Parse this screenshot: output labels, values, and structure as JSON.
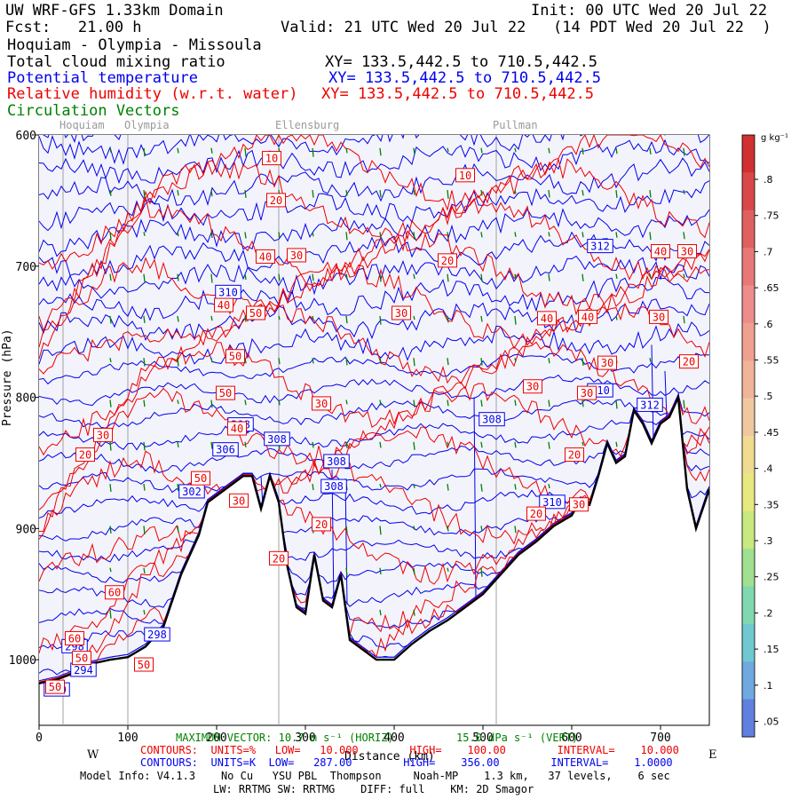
{
  "header": {
    "domain": "UW WRF-GFS 1.33km Domain",
    "init": "Init: 00 UTC Wed 20 Jul 22",
    "fcst": "Fcst:   21.00 h",
    "valid": "Valid: 21 UTC Wed 20 Jul 22   (14 PDT Wed 20 Jul 22  )",
    "route": "Hoquiam - Olympia - Missoula",
    "field1": "Total cloud mixing ratio",
    "field1_xy": "XY= 133.5,442.5 to 710.5,442.5",
    "field2": "Potential temperature",
    "field2_xy": "XY= 133.5,442.5 to 710.5,442.5",
    "field3": "Relative humidity (w.r.t. water)",
    "field3_xy": "XY= 133.5,442.5 to 710.5,442.5",
    "field4": "Circulation Vectors"
  },
  "colors": {
    "temperature": "#0000ee",
    "humidity": "#ee0000",
    "vectors": "#008000",
    "terrain": "#000000",
    "fill": "#f3f3fb"
  },
  "chart_data": {
    "type": "line",
    "xlabel": "Distance (km)",
    "ylabel": "Pressure (hPa)",
    "xlim": [
      0,
      755
    ],
    "ylim": [
      1050,
      600
    ],
    "x_ticks": [
      "0",
      "100",
      "200",
      "300",
      "400",
      "500",
      "600",
      "700"
    ],
    "y_ticks": [
      "600",
      "700",
      "800",
      "900",
      "1000"
    ],
    "x_tick_values": [
      0,
      100,
      200,
      300,
      400,
      500,
      600,
      700
    ],
    "y_tick_values": [
      600,
      700,
      800,
      900,
      1000
    ],
    "west_label": "W",
    "east_label": "E",
    "places": [
      {
        "name": "Hoquiam",
        "x": 27
      },
      {
        "name": "Olympia",
        "x": 100
      },
      {
        "name": "Ellensburg",
        "x": 270
      },
      {
        "name": "Pullman",
        "x": 515
      }
    ],
    "terrain": {
      "name": "surface",
      "x": [
        0,
        20,
        40,
        60,
        80,
        100,
        120,
        140,
        160,
        180,
        190,
        200,
        210,
        230,
        240,
        250,
        260,
        270,
        280,
        290,
        300,
        310,
        320,
        330,
        340,
        350,
        360,
        380,
        400,
        420,
        440,
        460,
        480,
        500,
        520,
        540,
        560,
        580,
        600,
        610,
        620,
        630,
        640,
        650,
        660,
        670,
        680,
        690,
        700,
        710,
        720,
        730,
        740,
        755
      ],
      "p": [
        1018,
        1015,
        1010,
        1003,
        1000,
        998,
        990,
        975,
        935,
        905,
        880,
        875,
        870,
        860,
        860,
        885,
        860,
        880,
        930,
        960,
        965,
        920,
        955,
        960,
        935,
        985,
        990,
        1000,
        1000,
        988,
        978,
        970,
        960,
        950,
        935,
        920,
        910,
        898,
        890,
        878,
        882,
        860,
        835,
        850,
        845,
        810,
        820,
        835,
        820,
        815,
        800,
        870,
        900,
        870
      ]
    },
    "theta_labels": [
      {
        "text": "310",
        "x": 213,
        "p": 720
      },
      {
        "text": "308",
        "x": 227,
        "p": 821
      },
      {
        "text": "306",
        "x": 210,
        "p": 840
      },
      {
        "text": "308",
        "x": 268,
        "p": 832
      },
      {
        "text": "302",
        "x": 172,
        "p": 872
      },
      {
        "text": "308",
        "x": 335,
        "p": 849
      },
      {
        "text": "308",
        "x": 332,
        "p": 868
      },
      {
        "text": "308",
        "x": 510,
        "p": 817
      },
      {
        "text": "310",
        "x": 578,
        "p": 880
      },
      {
        "text": "310",
        "x": 632,
        "p": 795
      },
      {
        "text": "312",
        "x": 688,
        "p": 806
      },
      {
        "text": "312",
        "x": 632,
        "p": 685
      },
      {
        "text": "298",
        "x": 133,
        "p": 981
      },
      {
        "text": "298",
        "x": 40,
        "p": 990
      },
      {
        "text": "294",
        "x": 50,
        "p": 1008
      },
      {
        "text": "290",
        "x": 20,
        "p": 1023
      }
    ],
    "rh_labels": [
      {
        "text": "10",
        "x": 262,
        "p": 618
      },
      {
        "text": "10",
        "x": 480,
        "p": 631
      },
      {
        "text": "20",
        "x": 267,
        "p": 650
      },
      {
        "text": "20",
        "x": 460,
        "p": 696
      },
      {
        "text": "30",
        "x": 290,
        "p": 692
      },
      {
        "text": "30",
        "x": 408,
        "p": 736
      },
      {
        "text": "30",
        "x": 730,
        "p": 689
      },
      {
        "text": "40",
        "x": 255,
        "p": 693
      },
      {
        "text": "40",
        "x": 700,
        "p": 689
      },
      {
        "text": "40",
        "x": 208,
        "p": 730
      },
      {
        "text": "40",
        "x": 572,
        "p": 740
      },
      {
        "text": "40",
        "x": 618,
        "p": 739
      },
      {
        "text": "30",
        "x": 698,
        "p": 739
      },
      {
        "text": "50",
        "x": 244,
        "p": 736
      },
      {
        "text": "50",
        "x": 221,
        "p": 769
      },
      {
        "text": "50",
        "x": 210,
        "p": 797
      },
      {
        "text": "30",
        "x": 640,
        "p": 774
      },
      {
        "text": "20",
        "x": 732,
        "p": 773
      },
      {
        "text": "30",
        "x": 556,
        "p": 792
      },
      {
        "text": "30",
        "x": 617,
        "p": 797
      },
      {
        "text": "30",
        "x": 318,
        "p": 805
      },
      {
        "text": "40",
        "x": 223,
        "p": 824
      },
      {
        "text": "30",
        "x": 72,
        "p": 829
      },
      {
        "text": "20",
        "x": 52,
        "p": 844
      },
      {
        "text": "20",
        "x": 603,
        "p": 844
      },
      {
        "text": "50",
        "x": 182,
        "p": 862
      },
      {
        "text": "30",
        "x": 225,
        "p": 879
      },
      {
        "text": "30",
        "x": 608,
        "p": 882
      },
      {
        "text": "20",
        "x": 560,
        "p": 889
      },
      {
        "text": "20",
        "x": 318,
        "p": 897
      },
      {
        "text": "20",
        "x": 270,
        "p": 923
      },
      {
        "text": "60",
        "x": 85,
        "p": 949
      },
      {
        "text": "60",
        "x": 40,
        "p": 984
      },
      {
        "text": "50",
        "x": 48,
        "p": 999
      },
      {
        "text": "50",
        "x": 118,
        "p": 1004
      },
      {
        "text": "50",
        "x": 18,
        "p": 1021
      }
    ]
  },
  "colorbar": {
    "unit": "g kg⁻¹",
    "labels": [
      ".8",
      ".75",
      ".7",
      ".65",
      ".6",
      ".55",
      ".5",
      ".45",
      ".4",
      ".35",
      ".3",
      ".25",
      ".2",
      ".15",
      ".1",
      ".05"
    ],
    "colors": [
      "#d03030",
      "#d84848",
      "#e06060",
      "#e87878",
      "#ee8c8c",
      "#f0a090",
      "#f0b498",
      "#f0c8a0",
      "#f0dc90",
      "#e8e880",
      "#c8e880",
      "#a0e090",
      "#80d8b0",
      "#70c8d0",
      "#70a8e0",
      "#6080e0"
    ]
  },
  "footer": {
    "max_vector": "MAXIMUM VECTOR: 10.7 m s⁻¹ (HORIZ)",
    "max_vector_vert": "15.0 dPa s⁻¹ (VERT)",
    "rh_contours": "CONTOURS:  UNITS=%   LOW=   10.000        HIGH=    100.00        INTERVAL=    10.000",
    "theta_contours": "CONTOURS:  UNITS=K  LOW=   287.00        HIGH=    356.00        INTERVAL=    1.0000",
    "model_info": "Model Info: V4.1.3    No Cu   YSU PBL  Thompson     Noah-MP    1.3 km,   37 levels,    6 sec",
    "model_info2": "LW: RRTMG SW: RRTMG    DIFF: full    KM: 2D Smagor"
  }
}
